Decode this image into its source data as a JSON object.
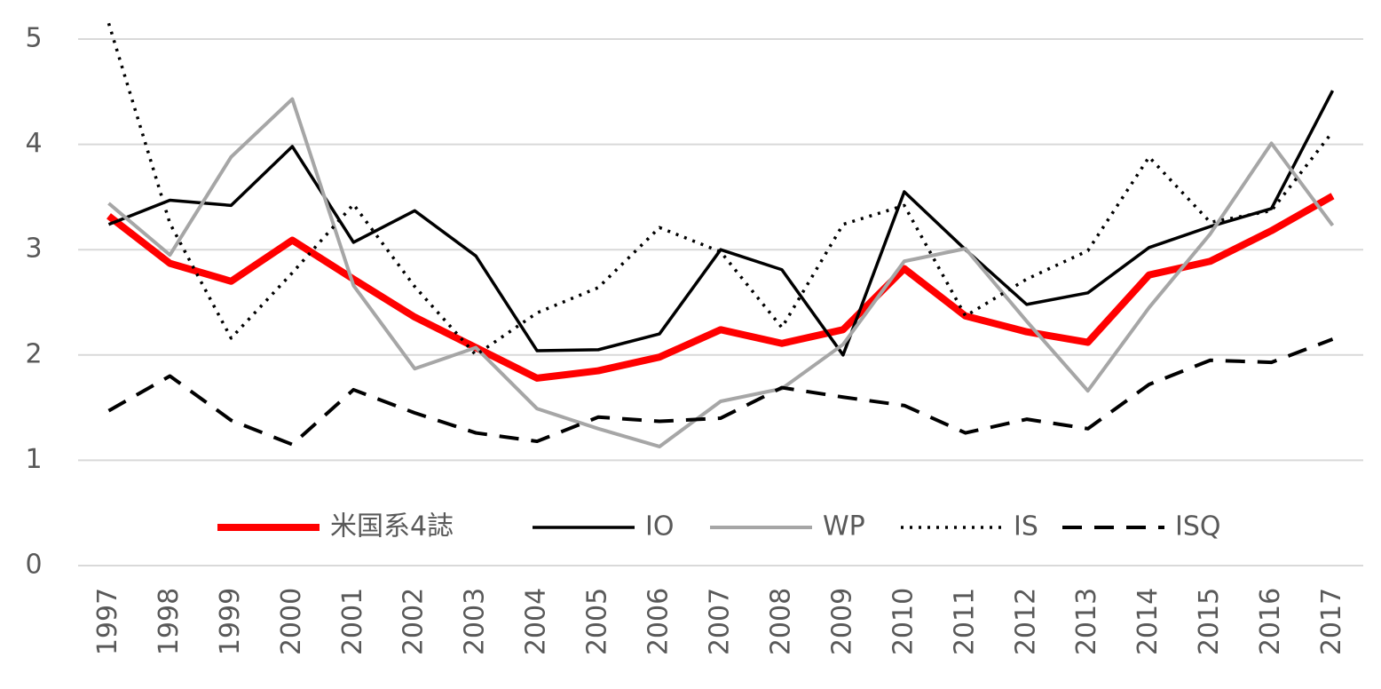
{
  "chart_data": {
    "type": "line",
    "categories": [
      "1997",
      "1998",
      "1999",
      "2000",
      "2001",
      "2002",
      "2003",
      "2004",
      "2005",
      "2006",
      "2007",
      "2008",
      "2009",
      "2010",
      "2011",
      "2012",
      "2013",
      "2014",
      "2015",
      "2016",
      "2017"
    ],
    "series": [
      {
        "name": "米国系4誌",
        "color": "#ff0000",
        "line_style": "solid",
        "line_width": 8,
        "values": [
          3.32,
          2.87,
          2.7,
          3.09,
          2.72,
          2.36,
          2.07,
          1.78,
          1.85,
          1.98,
          2.24,
          2.11,
          2.24,
          2.82,
          2.37,
          2.22,
          2.12,
          2.76,
          2.89,
          3.18,
          3.51
        ]
      },
      {
        "name": "IO",
        "color": "#000000",
        "line_style": "solid",
        "line_width": 3.5,
        "values": [
          3.24,
          3.47,
          3.42,
          3.98,
          3.07,
          3.37,
          2.94,
          2.04,
          2.05,
          2.2,
          3.0,
          2.81,
          2.0,
          3.55,
          3.0,
          2.48,
          2.59,
          3.02,
          3.22,
          3.39,
          4.51
        ]
      },
      {
        "name": "WP",
        "color": "#a6a6a6",
        "line_style": "solid",
        "line_width": 4,
        "values": [
          3.44,
          2.95,
          3.88,
          4.43,
          2.66,
          1.87,
          2.07,
          1.49,
          1.3,
          1.13,
          1.56,
          1.68,
          2.1,
          2.89,
          3.01,
          2.32,
          1.66,
          2.45,
          3.15,
          4.01,
          3.23
        ]
      },
      {
        "name": "IS",
        "color": "#000000",
        "line_style": "dotted",
        "line_width": 3.5,
        "values": [
          5.15,
          3.25,
          2.16,
          2.78,
          3.43,
          2.65,
          2.0,
          2.4,
          2.64,
          3.21,
          2.98,
          2.26,
          3.24,
          3.42,
          2.37,
          2.72,
          2.99,
          3.88,
          3.26,
          3.37,
          4.12
        ]
      },
      {
        "name": "ISQ",
        "color": "#000000",
        "line_style": "dashed",
        "line_width": 4,
        "values": [
          1.47,
          1.8,
          1.38,
          1.15,
          1.67,
          1.45,
          1.26,
          1.18,
          1.41,
          1.37,
          1.4,
          1.69,
          1.6,
          1.52,
          1.26,
          1.39,
          1.3,
          1.72,
          1.95,
          1.93,
          2.15
        ]
      }
    ],
    "ylim": [
      0,
      5
    ],
    "yticks": [
      0,
      1,
      2,
      3,
      4,
      5
    ],
    "grid": true,
    "legend": "bottom"
  }
}
